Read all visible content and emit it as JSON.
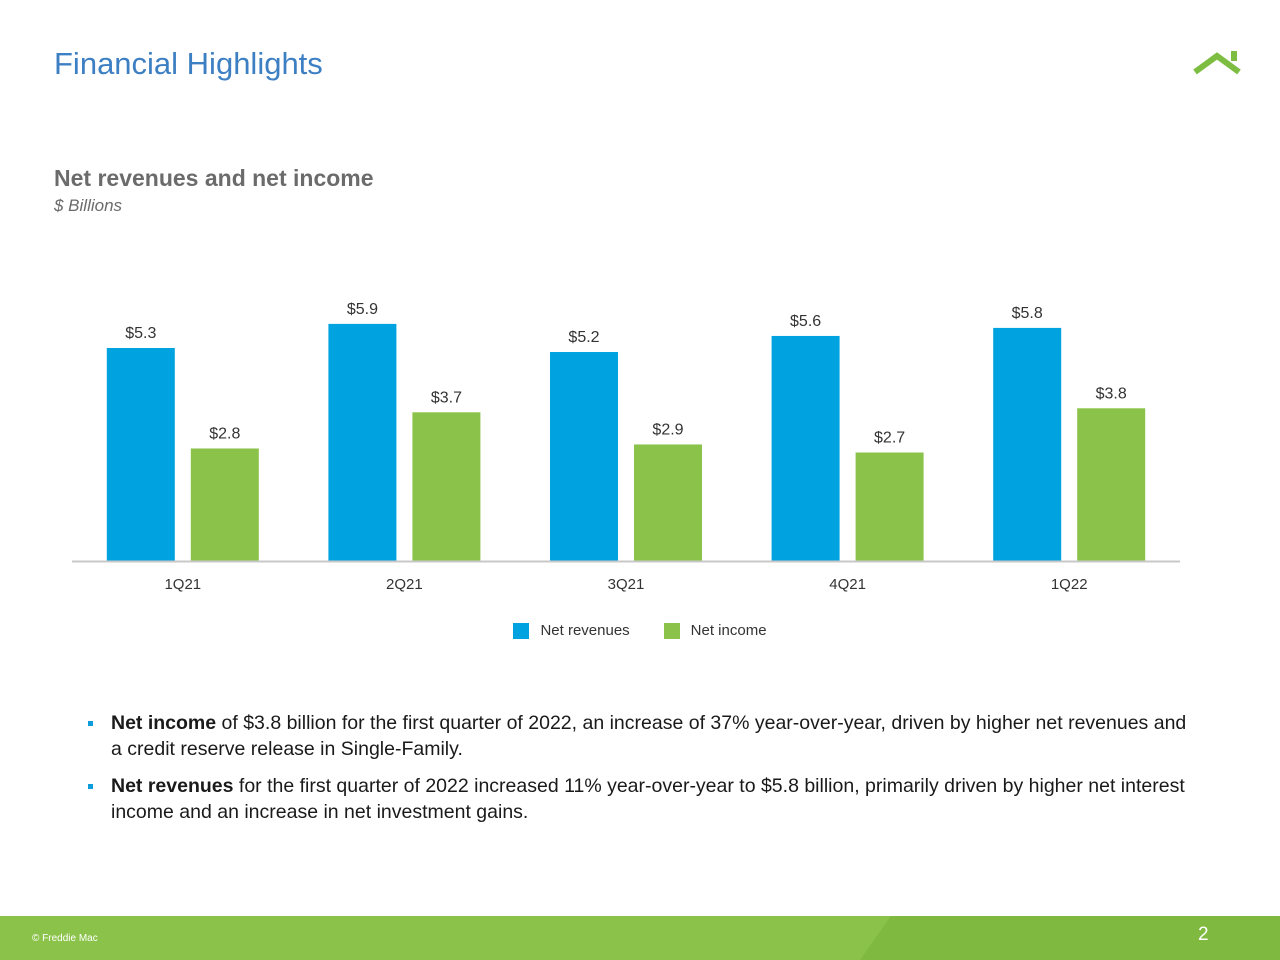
{
  "page": {
    "title": "Financial Highlights",
    "logo": "freddie-mac-roof-logo",
    "accent_blue": "#3d7fc3",
    "accent_green": "#7cbd42"
  },
  "chart_data": {
    "type": "bar",
    "title": "Net revenues and net income",
    "subtitle": "$ Billions",
    "categories": [
      "1Q21",
      "2Q21",
      "3Q21",
      "4Q21",
      "1Q22"
    ],
    "series": [
      {
        "name": "Net revenues",
        "color": "#00a3e0",
        "values": [
          5.3,
          5.9,
          5.2,
          5.6,
          5.8
        ],
        "labels": [
          "$5.3",
          "$5.9",
          "$5.2",
          "$5.6",
          "$5.8"
        ]
      },
      {
        "name": "Net income",
        "color": "#8bc34a",
        "values": [
          2.8,
          3.7,
          2.9,
          2.7,
          3.8
        ],
        "labels": [
          "$2.8",
          "$3.7",
          "$2.9",
          "$2.7",
          "$3.8"
        ]
      }
    ],
    "ylim": [
      0,
      6.5
    ],
    "grid": false,
    "legend_position": "bottom-center"
  },
  "bullets": [
    {
      "bold": "Net income",
      "text": " of $3.8 billion for the first quarter of 2022, an increase of 37% year-over-year, driven by higher net revenues and a credit reserve release in Single-Family."
    },
    {
      "bold": "Net revenues",
      "text": " for the first quarter of 2022 increased 11% year-over-year to $5.8 billion, primarily driven by higher net interest income and an increase in net investment gains."
    }
  ],
  "footer": {
    "copyright": "© Freddie Mac",
    "page_number": "2"
  }
}
